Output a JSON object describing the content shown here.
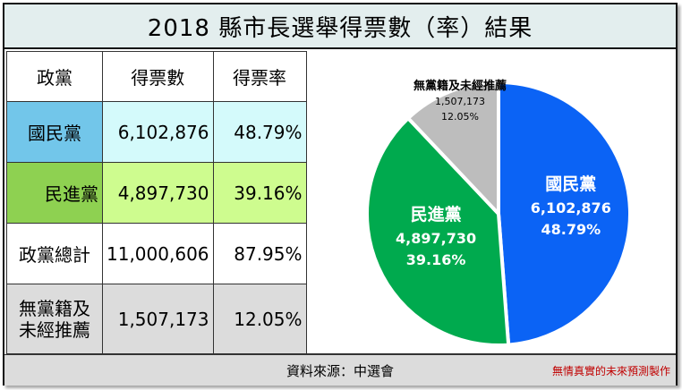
{
  "title": "2018 縣市長選舉得票數（率）結果",
  "table": {
    "headers": [
      "政黨",
      "得票數",
      "得票率"
    ],
    "rows": [
      {
        "party": "國民黨",
        "votes": "6,102,876",
        "rate": "48.79%"
      },
      {
        "party": "民進黨",
        "votes": "4,897,730",
        "rate": "39.16%"
      },
      {
        "party": "政黨總計",
        "votes": "11,000,606",
        "rate": "87.95%"
      },
      {
        "party_line1": "無黨籍及",
        "party_line2": "未經推薦",
        "votes": "1,507,173",
        "rate": "12.05%"
      }
    ]
  },
  "chart_data": {
    "type": "pie",
    "title": "",
    "slices": [
      {
        "label": "國民黨",
        "value": 6102876,
        "value_label": "6,102,876",
        "percent_label": "48.79%",
        "percent": 48.79,
        "color": "#0b63f5"
      },
      {
        "label": "民進黨",
        "value": 4897730,
        "value_label": "4,897,730",
        "percent_label": "39.16%",
        "percent": 39.16,
        "color": "#00aa4e"
      },
      {
        "label": "無黨籍及未經推薦",
        "value": 1507173,
        "value_label": "1,507,173",
        "percent_label": "12.05%",
        "percent": 12.05,
        "color": "#bdbdbd"
      }
    ],
    "start": "12 o'clock",
    "direction": "clockwise",
    "legend": "none"
  },
  "footer": {
    "source": "資料來源：中選會",
    "credit": "無情真實的未來預測製作"
  },
  "colors": {
    "title_bg": "#e3eeee",
    "kmt_party_cell": "#72c6ea",
    "kmt_value_cell": "#d4fafb",
    "dpp_party_cell": "#8ed151",
    "dpp_value_cell": "#cefc8f",
    "independent_cell": "#dcdcdc",
    "credit_text": "#c00000"
  }
}
